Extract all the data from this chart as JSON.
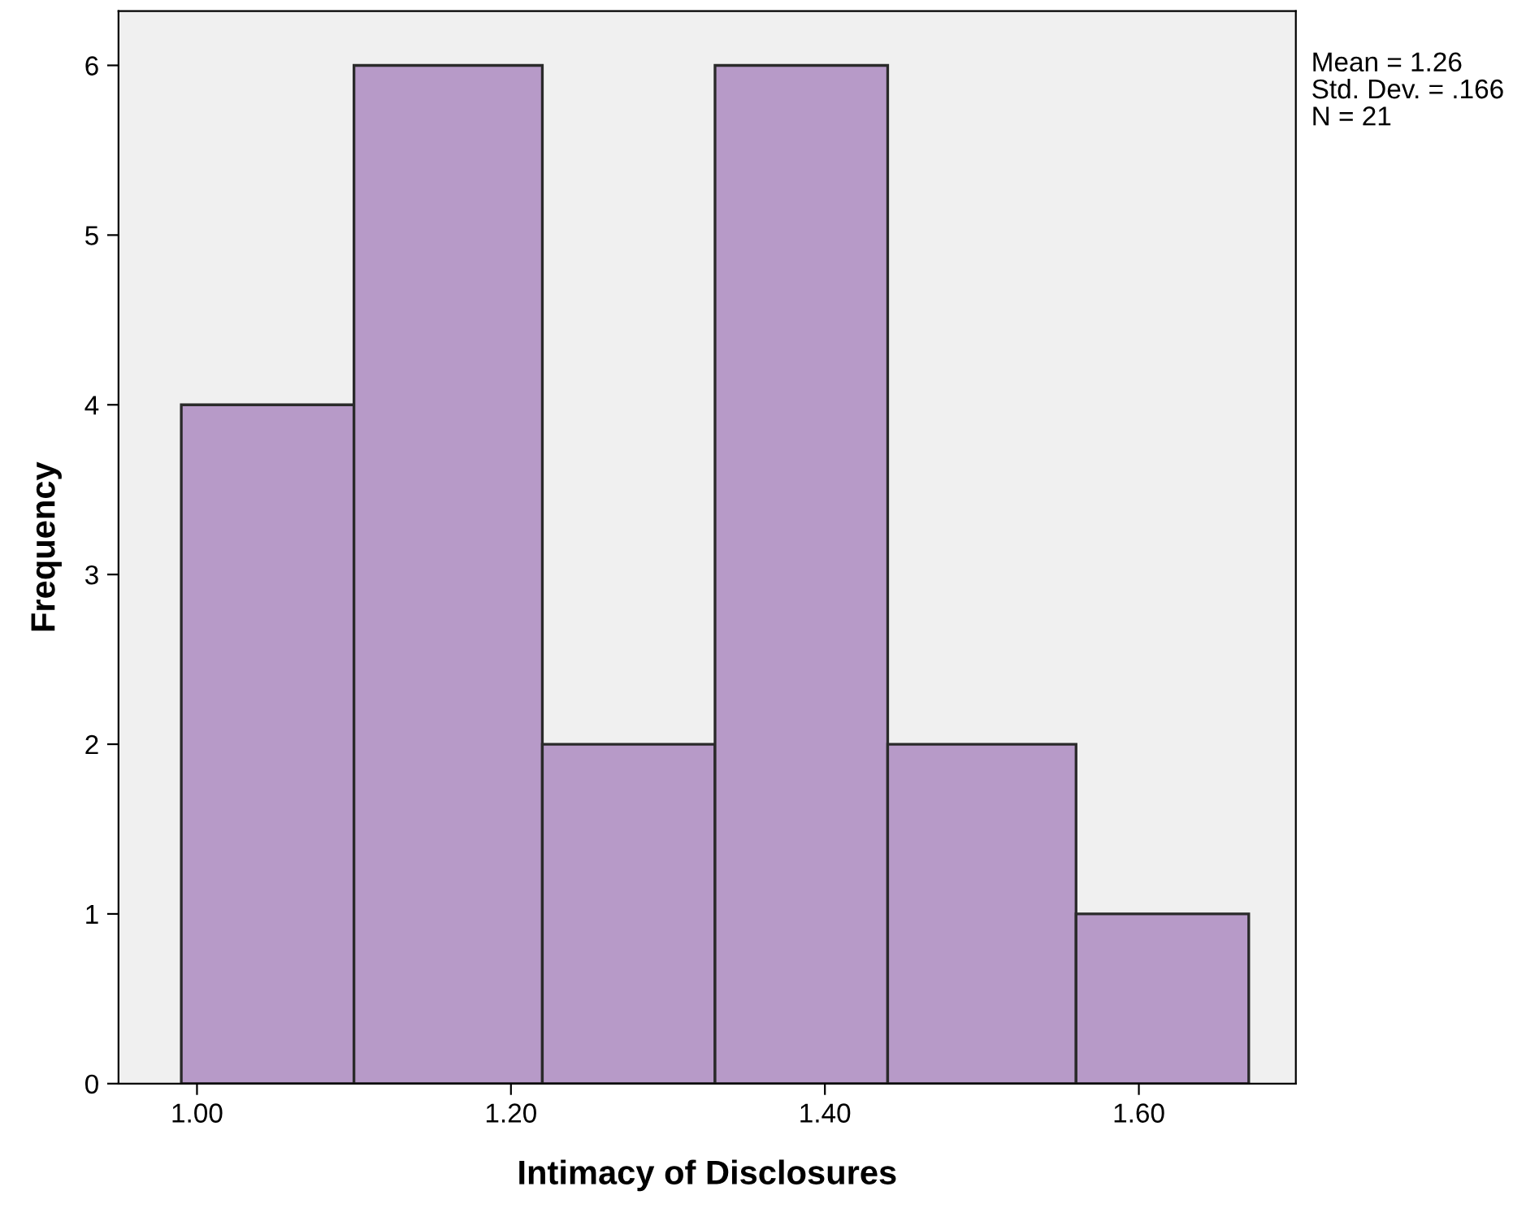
{
  "chart_data": {
    "type": "histogram",
    "xlabel": "Intimacy of Disclosures",
    "ylabel": "Frequency",
    "bins": [
      0.99,
      1.1,
      1.22,
      1.33,
      1.44,
      1.56,
      1.67
    ],
    "values": [
      4,
      6,
      2,
      6,
      2,
      1
    ],
    "color": "#b79ac8",
    "xlim": [
      0.95,
      1.7
    ],
    "xticks": [
      {
        "value": 1.0,
        "label": "1.00"
      },
      {
        "value": 1.2,
        "label": "1.20"
      },
      {
        "value": 1.4,
        "label": "1.40"
      },
      {
        "value": 1.6,
        "label": "1.60"
      }
    ],
    "ylim": [
      0,
      6.32
    ],
    "yticks": [
      0,
      1,
      2,
      3,
      4,
      5,
      6
    ],
    "grid": false,
    "annotations": [
      "Mean = 1.26",
      "Std. Dev. = .166",
      "N = 21"
    ]
  }
}
